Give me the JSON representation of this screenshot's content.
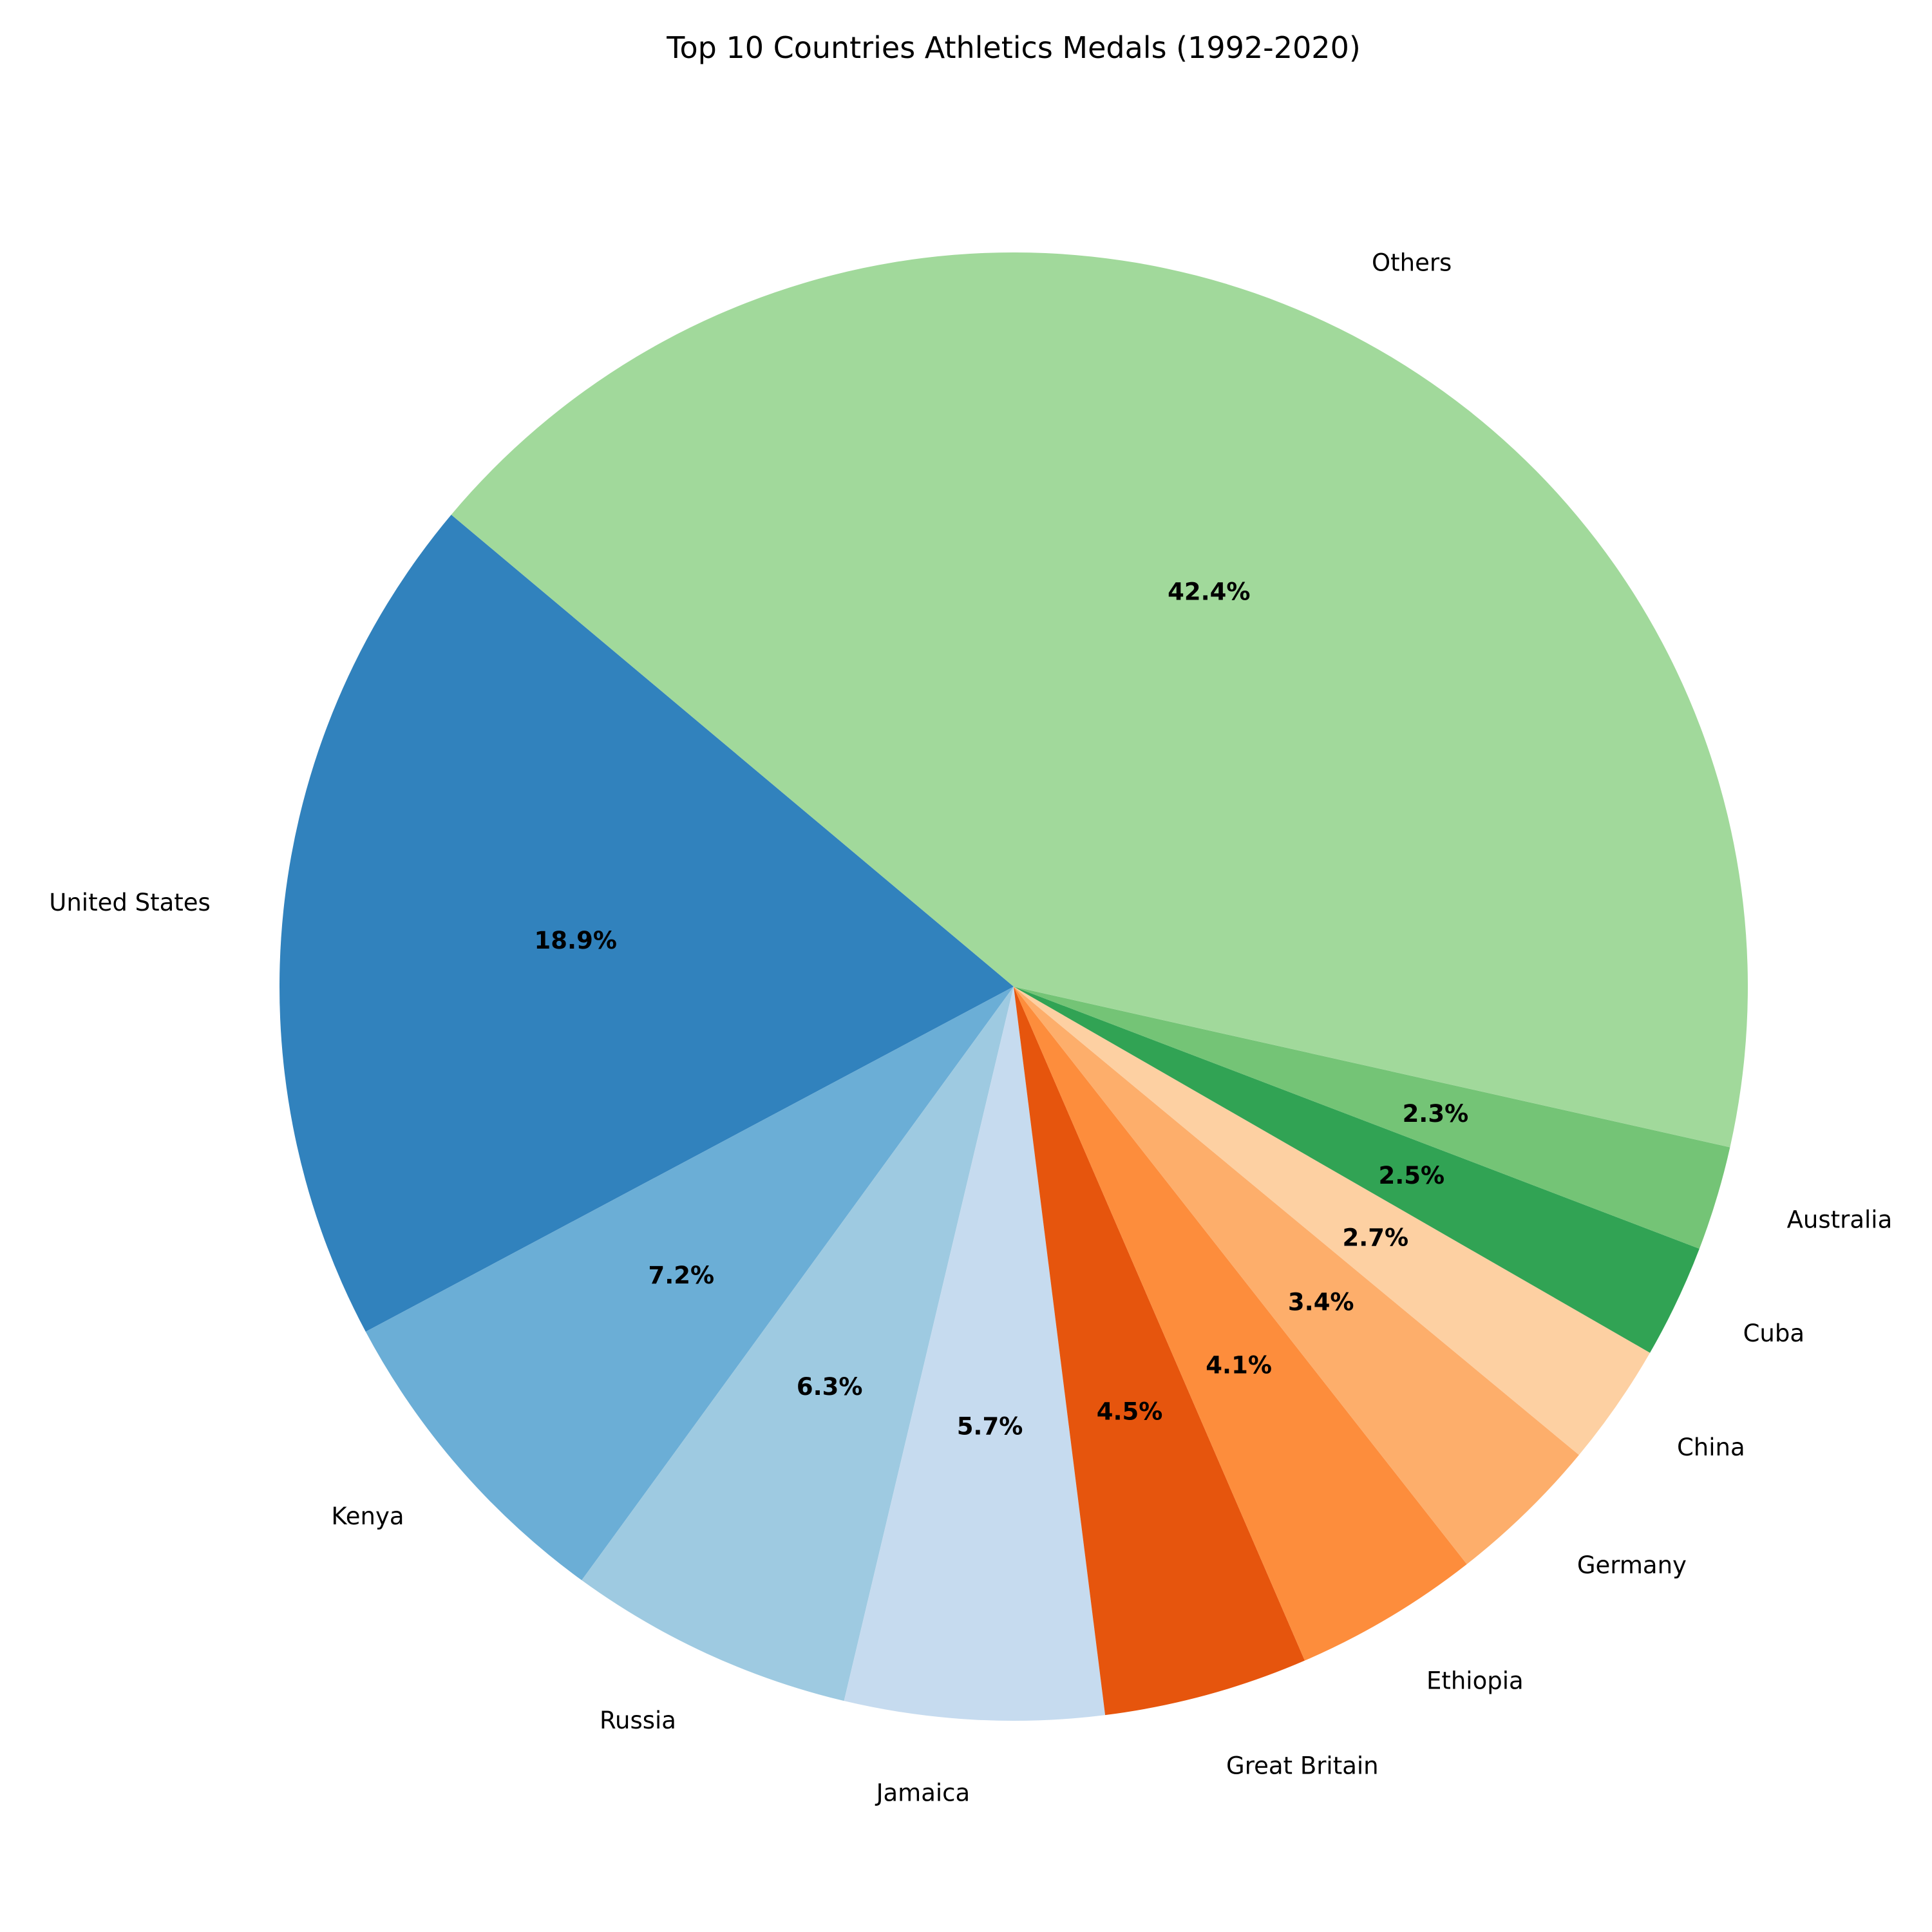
{
  "chart_data": {
    "type": "pie",
    "title": "Top 10 Countries Athletics Medals (1992-2020)",
    "start_angle_deg": 140,
    "direction": "counterclockwise",
    "slices": [
      {
        "label": "United States",
        "value": 18.9,
        "pct_text": "18.9%",
        "color": "#3182bd"
      },
      {
        "label": "Kenya",
        "value": 7.2,
        "pct_text": "7.2%",
        "color": "#6baed6"
      },
      {
        "label": "Russia",
        "value": 6.3,
        "pct_text": "6.3%",
        "color": "#9ecae1"
      },
      {
        "label": "Jamaica",
        "value": 5.7,
        "pct_text": "5.7%",
        "color": "#c6dbef"
      },
      {
        "label": "Great Britain",
        "value": 4.5,
        "pct_text": "4.5%",
        "color": "#e6550d"
      },
      {
        "label": "Ethiopia",
        "value": 4.1,
        "pct_text": "4.1%",
        "color": "#fd8d3c"
      },
      {
        "label": "Germany",
        "value": 3.4,
        "pct_text": "3.4%",
        "color": "#fdae6b"
      },
      {
        "label": "China",
        "value": 2.7,
        "pct_text": "2.7%",
        "color": "#fdd0a2"
      },
      {
        "label": "Cuba",
        "value": 2.5,
        "pct_text": "2.5%",
        "color": "#31a354"
      },
      {
        "label": "Australia",
        "value": 2.3,
        "pct_text": "2.3%",
        "color": "#74c476"
      },
      {
        "label": "Others",
        "value": 42.4,
        "pct_text": "42.4%",
        "color": "#a1d99b"
      }
    ]
  }
}
